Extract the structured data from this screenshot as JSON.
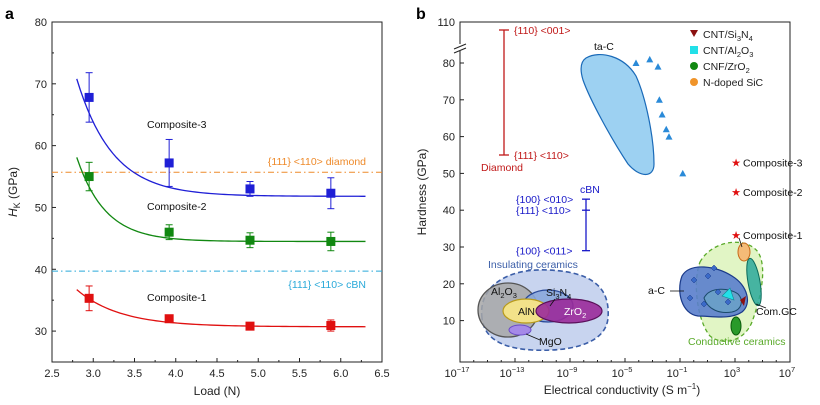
{
  "chart_data": [
    {
      "panel": "a",
      "type": "line",
      "xlabel": "Load (N)",
      "ylabel": "H",
      "ylabel_sub": "K",
      "ylabel_unit": " (GPa)",
      "xlim": [
        2.5,
        6.5
      ],
      "ylim": [
        25,
        80
      ],
      "xticks": [
        "2.5",
        "3.0",
        "3.5",
        "4.0",
        "4.5",
        "5.0",
        "5.5",
        "6.0",
        "6.5"
      ],
      "yticks": [
        "30",
        "40",
        "50",
        "60",
        "70",
        "80"
      ],
      "grid": false,
      "series": [
        {
          "name": "Composite-3",
          "color": "#1f1fd6",
          "x": [
            2.95,
            3.92,
            4.9,
            5.88
          ],
          "y": [
            67.8,
            57.2,
            53.0,
            52.3
          ],
          "err": [
            4.0,
            3.8,
            1.2,
            2.5
          ],
          "fit": {
            "a": 51.8,
            "b": 19.0,
            "k": 2.3,
            "x0": 2.8,
            "x1": 6.3
          }
        },
        {
          "name": "Composite-2",
          "color": "#118811",
          "x": [
            2.95,
            3.92,
            4.9,
            5.88
          ],
          "y": [
            55.0,
            46.0,
            44.7,
            44.5
          ],
          "err": [
            2.3,
            1.2,
            1.2,
            1.5
          ],
          "fit": {
            "a": 44.5,
            "b": 13.6,
            "k": 2.9,
            "x0": 2.8,
            "x1": 6.3
          }
        },
        {
          "name": "Composite-1",
          "color": "#e01010",
          "x": [
            2.95,
            3.92,
            4.9,
            5.88
          ],
          "y": [
            35.3,
            32.0,
            30.8,
            30.9
          ],
          "err": [
            2.0,
            0.6,
            0.5,
            0.9
          ],
          "fit": {
            "a": 30.7,
            "b": 6.0,
            "k": 1.9,
            "x0": 2.8,
            "x1": 6.3
          }
        }
      ],
      "reference_lines": [
        {
          "label": "{111} <110> diamond",
          "y": 55.7,
          "color": "#ee8a2a"
        },
        {
          "label": "{111} <110> cBN",
          "y": 39.7,
          "color": "#29a9d9"
        }
      ]
    },
    {
      "panel": "b",
      "type": "scatter",
      "xlabel": "Electrical conductivity (S m",
      "xlabel_sup": "−1",
      "xlabel_end": ")",
      "ylabel": "Hardness (GPa)",
      "xscale": "log",
      "xlim_exp": [
        -17,
        7
      ],
      "xticks_exp": [
        -17,
        -13,
        -9,
        -5,
        -1,
        3,
        7
      ],
      "yticks": [
        "10",
        "20",
        "30",
        "40",
        "50",
        "60",
        "70",
        "80",
        "110"
      ],
      "axis_break": "between 80 and 110",
      "grid": false,
      "legend_placement": "top-right",
      "legend": [
        {
          "label": "CNT/Si",
          "sub": "3",
          "label2": "N",
          "sub2": "4",
          "marker": "triangle-down",
          "color": "#8b1010"
        },
        {
          "label": "CNT/Al",
          "sub": "2",
          "label2": "O",
          "sub2": "3",
          "marker": "square",
          "color": "#22e0e8"
        },
        {
          "label": "CNF/ZrO",
          "sub": "2",
          "label2": "",
          "sub2": "",
          "marker": "circle",
          "color": "#118811"
        },
        {
          "label": "N-doped SiC",
          "sub": "",
          "label2": "",
          "sub2": "",
          "marker": "circle",
          "color": "#f0942a"
        }
      ],
      "diamond_range": {
        "label": "Diamond",
        "top": "{110} <001>",
        "bottom": "{111} <110>",
        "color": "#c01818",
        "ymin": 55,
        "ymax": 110
      },
      "cbn_range": {
        "title": "cBN",
        "labels": [
          "{100} <010>",
          "{111} <110>",
          "{100} <011>"
        ],
        "color": "#1818c8",
        "ymin": 29,
        "ymax": 43,
        "mid": 40
      },
      "composites": [
        {
          "label": "Composite-3",
          "y": 53
        },
        {
          "label": "Composite-2",
          "y": 45
        },
        {
          "label": "Composite-1",
          "y": 33.3
        }
      ],
      "region_labels": {
        "ta-C": "ta-C",
        "a-C": "a-C",
        "Com.GC": "Com.GC",
        "insulating": "Insulating ceramics",
        "conductive": "Conductive ceramics",
        "MgO": "MgO",
        "AlN": "AlN"
      },
      "formula_parts": {
        "al2o3": [
          "Al",
          "2",
          "O",
          "3"
        ],
        "si3n4": [
          "Si",
          "3",
          "N",
          "4"
        ],
        "zro2": [
          "ZrO",
          "2"
        ]
      },
      "tac_points": [
        {
          "x": -4.2,
          "y": 80
        },
        {
          "x": -3.2,
          "y": 81
        },
        {
          "x": -2.6,
          "y": 79
        },
        {
          "x": -2.5,
          "y": 70
        },
        {
          "x": -2.3,
          "y": 66
        },
        {
          "x": -2.0,
          "y": 62
        },
        {
          "x": -1.8,
          "y": 60
        },
        {
          "x": -0.8,
          "y": 50
        }
      ]
    }
  ]
}
